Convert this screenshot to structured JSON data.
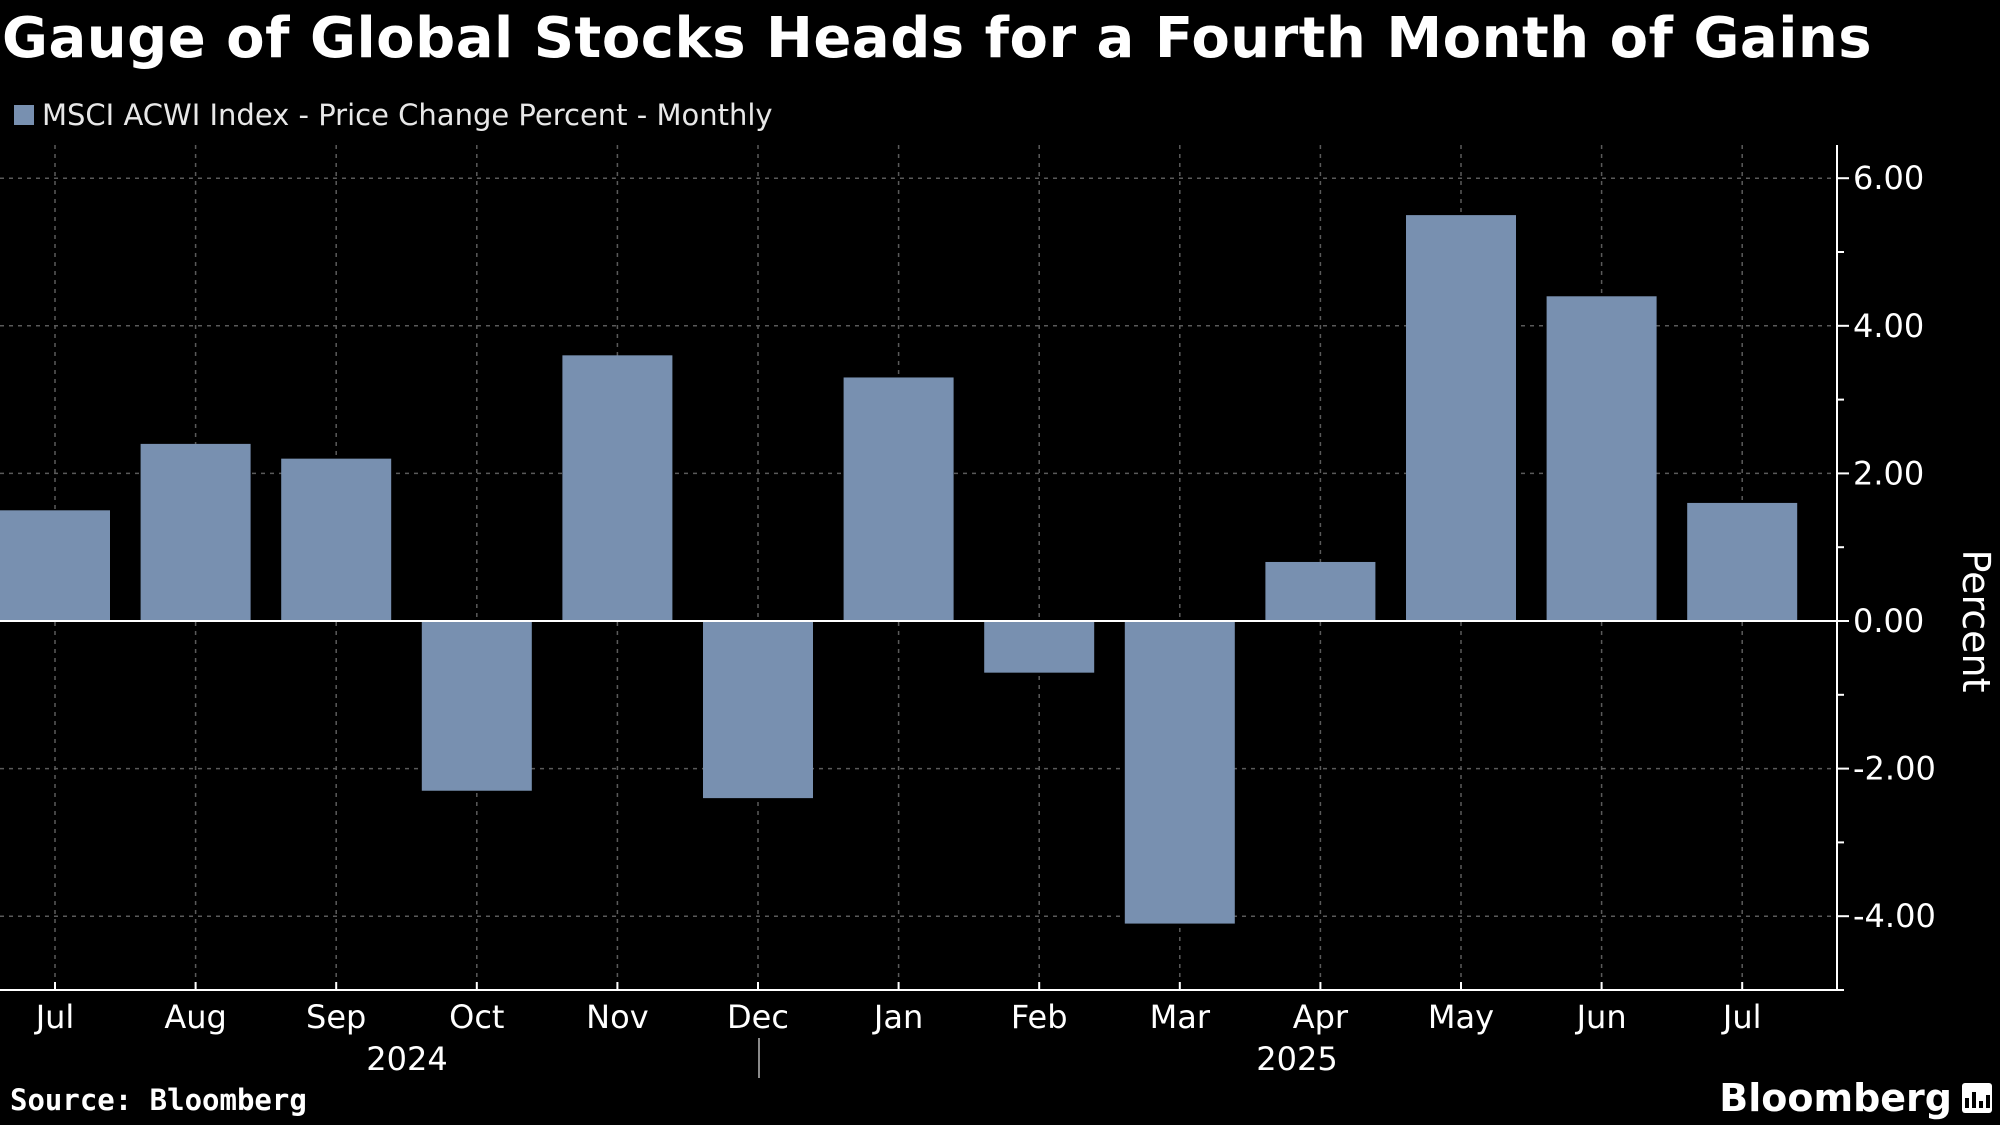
{
  "title": "Gauge of Global Stocks Heads for a Fourth Month of Gains",
  "legend": {
    "label": "MSCI ACWI Index - Price Change Percent - Monthly",
    "color": "#7890b0"
  },
  "footer": {
    "source": "Source: Bloomberg",
    "brand": "Bloomberg",
    "brand_icon": "bloomberg-chart-icon"
  },
  "chart_data": {
    "type": "bar",
    "categories": [
      "Jul",
      "Aug",
      "Sep",
      "Oct",
      "Nov",
      "Dec",
      "Jan",
      "Feb",
      "Mar",
      "Apr",
      "May",
      "Jun",
      "Jul"
    ],
    "year_labels": [
      {
        "label": "2024",
        "start": 0,
        "end": 5
      },
      {
        "label": "2025",
        "start": 6,
        "end": 12
      }
    ],
    "series": [
      {
        "name": "MSCI ACWI Index - Price Change Percent - Monthly",
        "values": [
          1.5,
          2.4,
          2.2,
          -2.3,
          3.6,
          -2.4,
          3.3,
          -0.7,
          -4.1,
          0.8,
          5.5,
          4.4,
          1.6
        ],
        "color": "#7890b0"
      }
    ],
    "ylabel": "Percent",
    "ylim": [
      -5.0,
      6.45
    ],
    "yticks": [
      "6.00",
      "4.00",
      "2.00",
      "0.00",
      "-2.00",
      "-4.00"
    ],
    "ytick_values": [
      6,
      4,
      2,
      0,
      -2,
      -4
    ],
    "y_axis_position": "right",
    "grid": true,
    "background": "#000000",
    "axis_color": "#ffffff",
    "grid_color": "#5a5a5a"
  }
}
